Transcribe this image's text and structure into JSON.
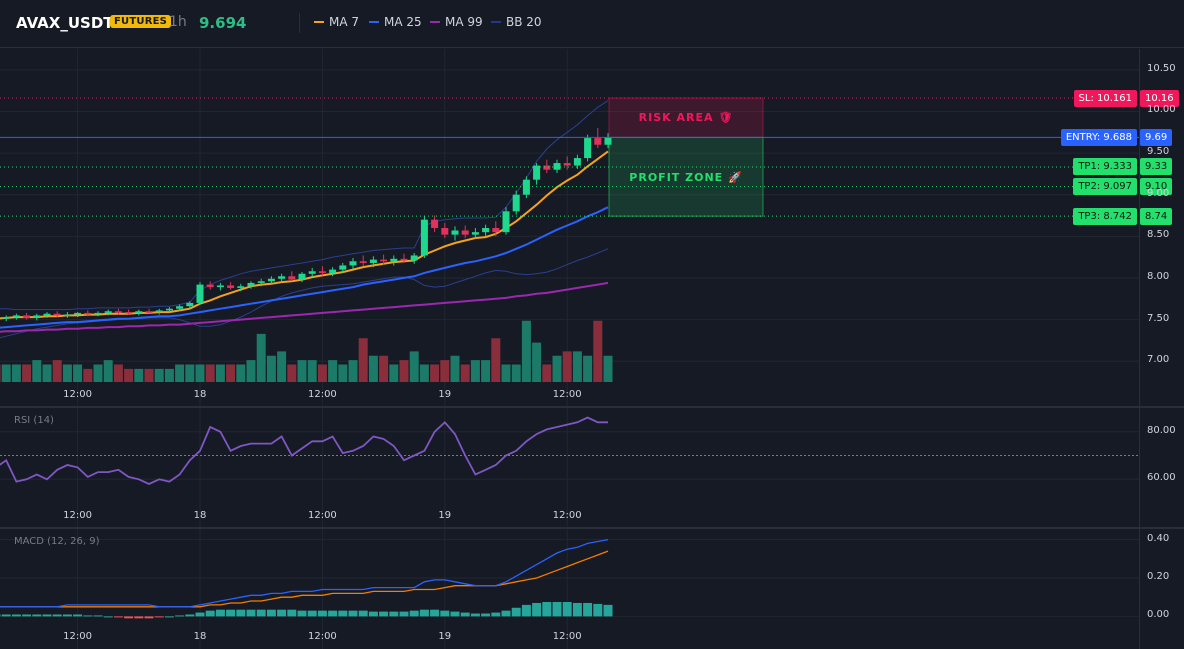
{
  "header": {
    "symbol": "AVAX_USDT",
    "badge": "FUTURES",
    "interval": "1h",
    "price": "9.694",
    "legend": [
      {
        "label": "MA 7",
        "color": "#f7a21b"
      },
      {
        "label": "MA 25",
        "color": "#2962ff"
      },
      {
        "label": "MA 99",
        "color": "#9c27b0"
      },
      {
        "label": "BB 20",
        "color": "#1e3a8a"
      }
    ]
  },
  "colors": {
    "up": "#1ed88e",
    "down": "#e0325a",
    "vol_up": "#1c7a68",
    "vol_down": "#8a2e3c",
    "sl": "#f0185b",
    "entry": "#2962ff",
    "tp": "#22e06b",
    "rsi": "#7e57c2",
    "macd": "#2962ff",
    "signal": "#f57c00",
    "hist": "#26a69a"
  },
  "zones": {
    "risk_label": "RISK AREA 🛡",
    "profit_label": "PROFIT ZONE 🚀"
  },
  "levels": [
    {
      "name": "sl",
      "label": "SL: 10.161",
      "value": 10.161,
      "short": "10.16",
      "color": "#f0185b"
    },
    {
      "name": "entry",
      "label": "ENTRY: 9.688",
      "value": 9.688,
      "short": "9.69",
      "color": "#2962ff"
    },
    {
      "name": "tp1",
      "label": "TP1: 9.333",
      "value": 9.333,
      "short": "9.33",
      "color": "#22e06b"
    },
    {
      "name": "tp2",
      "label": "TP2: 9.097",
      "value": 9.097,
      "short": "9.10",
      "color": "#22e06b"
    },
    {
      "name": "tp3",
      "label": "TP3: 8.742",
      "value": 8.742,
      "short": "8.74",
      "color": "#22e06b"
    }
  ],
  "time_axis": {
    "ticks": [
      {
        "label": "12:00",
        "t": 8
      },
      {
        "label": "18",
        "t": 20
      },
      {
        "label": "12:00",
        "t": 32
      },
      {
        "label": "19",
        "t": 44
      },
      {
        "label": "12:00",
        "t": 56
      }
    ]
  },
  "rsi_pane": {
    "title": "RSI (14)",
    "level": 70
  },
  "macd_pane": {
    "title": "MACD (12, 26, 9)"
  },
  "chart_data": [
    {
      "type": "line",
      "name": "price",
      "ylim": [
        6.75,
        10.75
      ],
      "yticks": [
        "10.50",
        "10.00",
        "9.50",
        "9.00",
        "8.50",
        "8.00",
        "7.50",
        "7.00"
      ],
      "ytick_values": [
        10.5,
        10.0,
        9.5,
        9.0,
        8.5,
        8.0,
        7.5,
        7.0
      ],
      "candles": [
        [
          7.52,
          7.55,
          7.49,
          7.51
        ],
        [
          7.51,
          7.55,
          7.48,
          7.53
        ],
        [
          7.53,
          7.57,
          7.5,
          7.55
        ],
        [
          7.55,
          7.58,
          7.5,
          7.52
        ],
        [
          7.52,
          7.57,
          7.49,
          7.55
        ],
        [
          7.55,
          7.59,
          7.52,
          7.57
        ],
        [
          7.57,
          7.6,
          7.53,
          7.55
        ],
        [
          7.55,
          7.59,
          7.52,
          7.56
        ],
        [
          7.56,
          7.59,
          7.53,
          7.58
        ],
        [
          7.58,
          7.61,
          7.54,
          7.57
        ],
        [
          7.57,
          7.6,
          7.54,
          7.58
        ],
        [
          7.58,
          7.62,
          7.55,
          7.6
        ],
        [
          7.6,
          7.63,
          7.56,
          7.59
        ],
        [
          7.59,
          7.62,
          7.56,
          7.58
        ],
        [
          7.58,
          7.62,
          7.55,
          7.6
        ],
        [
          7.6,
          7.63,
          7.57,
          7.59
        ],
        [
          7.59,
          7.63,
          7.56,
          7.61
        ],
        [
          7.61,
          7.65,
          7.58,
          7.63
        ],
        [
          7.63,
          7.68,
          7.6,
          7.66
        ],
        [
          7.66,
          7.72,
          7.63,
          7.7
        ],
        [
          7.7,
          7.95,
          7.68,
          7.92
        ],
        [
          7.92,
          7.96,
          7.86,
          7.89
        ],
        [
          7.89,
          7.94,
          7.85,
          7.91
        ],
        [
          7.91,
          7.95,
          7.86,
          7.88
        ],
        [
          7.88,
          7.93,
          7.84,
          7.9
        ],
        [
          7.9,
          7.96,
          7.87,
          7.94
        ],
        [
          7.94,
          7.99,
          7.9,
          7.96
        ],
        [
          7.96,
          8.02,
          7.92,
          7.99
        ],
        [
          7.99,
          8.05,
          7.95,
          8.02
        ],
        [
          8.02,
          8.08,
          7.96,
          7.98
        ],
        [
          7.98,
          8.07,
          7.95,
          8.05
        ],
        [
          8.05,
          8.12,
          8.01,
          8.08
        ],
        [
          8.08,
          8.14,
          8.03,
          8.06
        ],
        [
          8.06,
          8.13,
          8.02,
          8.1
        ],
        [
          8.1,
          8.18,
          8.06,
          8.15
        ],
        [
          8.15,
          8.24,
          8.11,
          8.2
        ],
        [
          8.2,
          8.27,
          8.14,
          8.18
        ],
        [
          8.18,
          8.26,
          8.13,
          8.22
        ],
        [
          8.22,
          8.28,
          8.16,
          8.2
        ],
        [
          8.2,
          8.27,
          8.15,
          8.23
        ],
        [
          8.23,
          8.29,
          8.18,
          8.21
        ],
        [
          8.21,
          8.3,
          8.17,
          8.27
        ],
        [
          8.27,
          8.75,
          8.24,
          8.7
        ],
        [
          8.7,
          8.75,
          8.55,
          8.6
        ],
        [
          8.6,
          8.66,
          8.48,
          8.52
        ],
        [
          8.52,
          8.62,
          8.45,
          8.57
        ],
        [
          8.57,
          8.63,
          8.48,
          8.52
        ],
        [
          8.52,
          8.6,
          8.47,
          8.55
        ],
        [
          8.55,
          8.64,
          8.5,
          8.6
        ],
        [
          8.6,
          8.68,
          8.5,
          8.55
        ],
        [
          8.55,
          8.85,
          8.52,
          8.8
        ],
        [
          8.8,
          9.05,
          8.76,
          9.0
        ],
        [
          9.0,
          9.22,
          8.96,
          9.18
        ],
        [
          9.18,
          9.38,
          9.12,
          9.35
        ],
        [
          9.35,
          9.42,
          9.26,
          9.3
        ],
        [
          9.3,
          9.42,
          9.26,
          9.38
        ],
        [
          9.38,
          9.46,
          9.3,
          9.35
        ],
        [
          9.35,
          9.48,
          9.31,
          9.44
        ],
        [
          9.44,
          9.72,
          9.4,
          9.68
        ],
        [
          9.68,
          9.8,
          9.56,
          9.6
        ],
        [
          9.6,
          9.74,
          9.56,
          9.69
        ]
      ],
      "ma7": [
        7.51,
        7.52,
        7.53,
        7.53,
        7.53,
        7.54,
        7.54,
        7.55,
        7.55,
        7.56,
        7.56,
        7.57,
        7.57,
        7.57,
        7.58,
        7.58,
        7.59,
        7.59,
        7.61,
        7.63,
        7.69,
        7.73,
        7.78,
        7.82,
        7.86,
        7.9,
        7.92,
        7.93,
        7.95,
        7.96,
        7.98,
        8.01,
        8.03,
        8.05,
        8.07,
        8.1,
        8.13,
        8.15,
        8.17,
        8.19,
        8.2,
        8.21,
        8.28,
        8.33,
        8.38,
        8.42,
        8.45,
        8.48,
        8.49,
        8.53,
        8.6,
        8.68,
        8.78,
        8.88,
        8.99,
        9.09,
        9.17,
        9.24,
        9.34,
        9.43,
        9.52
      ],
      "ma25": [
        7.4,
        7.41,
        7.42,
        7.43,
        7.44,
        7.45,
        7.46,
        7.47,
        7.47,
        7.48,
        7.49,
        7.5,
        7.51,
        7.51,
        7.52,
        7.53,
        7.54,
        7.54,
        7.55,
        7.57,
        7.59,
        7.61,
        7.63,
        7.65,
        7.67,
        7.69,
        7.71,
        7.73,
        7.75,
        7.77,
        7.79,
        7.81,
        7.83,
        7.85,
        7.87,
        7.89,
        7.92,
        7.94,
        7.96,
        7.98,
        8.0,
        8.02,
        8.06,
        8.09,
        8.12,
        8.15,
        8.18,
        8.2,
        8.23,
        8.26,
        8.3,
        8.35,
        8.4,
        8.46,
        8.52,
        8.58,
        8.63,
        8.68,
        8.74,
        8.79,
        8.85
      ],
      "ma99": [
        7.35,
        7.36,
        7.36,
        7.37,
        7.37,
        7.38,
        7.38,
        7.39,
        7.39,
        7.4,
        7.4,
        7.41,
        7.41,
        7.42,
        7.42,
        7.43,
        7.43,
        7.44,
        7.44,
        7.45,
        7.46,
        7.47,
        7.48,
        7.49,
        7.5,
        7.51,
        7.52,
        7.53,
        7.54,
        7.55,
        7.56,
        7.57,
        7.58,
        7.59,
        7.6,
        7.61,
        7.62,
        7.63,
        7.64,
        7.65,
        7.66,
        7.67,
        7.68,
        7.69,
        7.7,
        7.71,
        7.72,
        7.73,
        7.74,
        7.75,
        7.76,
        7.78,
        7.79,
        7.81,
        7.82,
        7.84,
        7.86,
        7.88,
        7.9,
        7.92,
        7.94
      ],
      "bb_upper": [
        7.63,
        7.63,
        7.62,
        7.62,
        7.62,
        7.62,
        7.62,
        7.62,
        7.63,
        7.63,
        7.64,
        7.64,
        7.64,
        7.64,
        7.65,
        7.65,
        7.66,
        7.66,
        7.68,
        7.71,
        7.85,
        7.92,
        7.97,
        8.01,
        8.05,
        8.08,
        8.1,
        8.12,
        8.14,
        8.16,
        8.18,
        8.2,
        8.22,
        8.25,
        8.27,
        8.29,
        8.31,
        8.33,
        8.34,
        8.35,
        8.36,
        8.36,
        8.62,
        8.68,
        8.7,
        8.71,
        8.72,
        8.72,
        8.72,
        8.73,
        8.85,
        9.02,
        9.2,
        9.4,
        9.55,
        9.66,
        9.75,
        9.84,
        9.95,
        10.05,
        10.13
      ],
      "bb_lower": [
        7.27,
        7.3,
        7.33,
        7.36,
        7.39,
        7.41,
        7.43,
        7.45,
        7.46,
        7.47,
        7.48,
        7.49,
        7.5,
        7.51,
        7.51,
        7.52,
        7.52,
        7.52,
        7.5,
        7.46,
        7.42,
        7.42,
        7.44,
        7.48,
        7.53,
        7.59,
        7.66,
        7.72,
        7.78,
        7.82,
        7.85,
        7.88,
        7.9,
        7.91,
        7.92,
        7.93,
        7.95,
        7.97,
        7.99,
        8.01,
        8.01,
        7.98,
        7.91,
        7.89,
        7.9,
        7.94,
        7.98,
        8.02,
        8.06,
        8.09,
        8.08,
        8.05,
        8.04,
        8.05,
        8.07,
        8.11,
        8.16,
        8.21,
        8.25,
        8.3,
        8.35
      ],
      "volume": [
        4,
        4,
        4,
        4,
        5,
        4,
        5,
        4,
        4,
        3,
        4,
        5,
        4,
        3,
        3,
        3,
        3,
        3,
        4,
        4,
        4,
        4,
        4,
        4,
        4,
        5,
        11,
        6,
        7,
        4,
        5,
        5,
        4,
        5,
        4,
        5,
        10,
        6,
        6,
        4,
        5,
        7,
        4,
        4,
        5,
        6,
        4,
        5,
        5,
        10,
        4,
        4,
        14,
        9,
        4,
        6,
        7,
        7,
        6,
        14,
        6
      ]
    },
    {
      "type": "line",
      "name": "RSI (14)",
      "ylim": [
        50,
        90
      ],
      "yticks": [
        "80.00",
        "60.00"
      ],
      "ytick_values": [
        80,
        60
      ],
      "values": [
        65,
        68,
        59,
        60,
        62,
        60,
        64,
        66,
        65,
        61,
        63,
        63,
        64,
        61,
        60,
        58,
        60,
        59,
        62,
        68,
        72,
        82,
        80,
        72,
        74,
        75,
        75,
        75,
        78,
        70,
        73,
        76,
        76,
        78,
        71,
        72,
        74,
        78,
        77,
        74,
        68,
        70,
        72,
        80,
        84,
        79,
        70,
        62,
        64,
        66,
        70,
        72,
        76,
        79,
        81,
        82,
        83,
        84,
        86,
        84,
        84
      ]
    },
    {
      "type": "line",
      "name": "MACD (12, 26, 9)",
      "ylim": [
        -0.05,
        0.45
      ],
      "yticks": [
        "0.40",
        "0.20",
        "0.00"
      ],
      "ytick_values": [
        0.4,
        0.2,
        0.0
      ],
      "macd": [
        0.05,
        0.05,
        0.05,
        0.05,
        0.05,
        0.05,
        0.05,
        0.06,
        0.06,
        0.06,
        0.06,
        0.06,
        0.06,
        0.06,
        0.06,
        0.06,
        0.05,
        0.05,
        0.05,
        0.05,
        0.06,
        0.07,
        0.08,
        0.09,
        0.1,
        0.11,
        0.11,
        0.12,
        0.12,
        0.13,
        0.13,
        0.13,
        0.14,
        0.14,
        0.14,
        0.14,
        0.14,
        0.15,
        0.15,
        0.15,
        0.15,
        0.15,
        0.18,
        0.19,
        0.19,
        0.18,
        0.17,
        0.16,
        0.16,
        0.16,
        0.18,
        0.21,
        0.24,
        0.27,
        0.3,
        0.33,
        0.35,
        0.36,
        0.38,
        0.39,
        0.4
      ],
      "signal": [
        0.05,
        0.05,
        0.05,
        0.05,
        0.05,
        0.05,
        0.05,
        0.05,
        0.05,
        0.05,
        0.05,
        0.05,
        0.05,
        0.05,
        0.05,
        0.05,
        0.05,
        0.05,
        0.05,
        0.05,
        0.05,
        0.06,
        0.06,
        0.07,
        0.07,
        0.08,
        0.08,
        0.09,
        0.1,
        0.1,
        0.11,
        0.11,
        0.11,
        0.12,
        0.12,
        0.12,
        0.12,
        0.13,
        0.13,
        0.13,
        0.13,
        0.14,
        0.14,
        0.14,
        0.15,
        0.16,
        0.16,
        0.16,
        0.16,
        0.16,
        0.17,
        0.18,
        0.19,
        0.2,
        0.22,
        0.24,
        0.26,
        0.28,
        0.3,
        0.32,
        0.34
      ],
      "hist": [
        0.01,
        0.01,
        0.01,
        0.01,
        0.01,
        0.01,
        0.01,
        0.01,
        0.01,
        0.005,
        0.005,
        0.0,
        -0.005,
        -0.01,
        -0.01,
        -0.01,
        -0.005,
        0.0,
        0.005,
        0.01,
        0.02,
        0.03,
        0.035,
        0.035,
        0.035,
        0.035,
        0.035,
        0.035,
        0.035,
        0.035,
        0.03,
        0.03,
        0.03,
        0.03,
        0.03,
        0.03,
        0.03,
        0.025,
        0.025,
        0.025,
        0.025,
        0.03,
        0.035,
        0.035,
        0.03,
        0.025,
        0.02,
        0.015,
        0.015,
        0.02,
        0.03,
        0.045,
        0.06,
        0.07,
        0.075,
        0.075,
        0.075,
        0.07,
        0.07,
        0.065,
        0.06
      ]
    }
  ]
}
